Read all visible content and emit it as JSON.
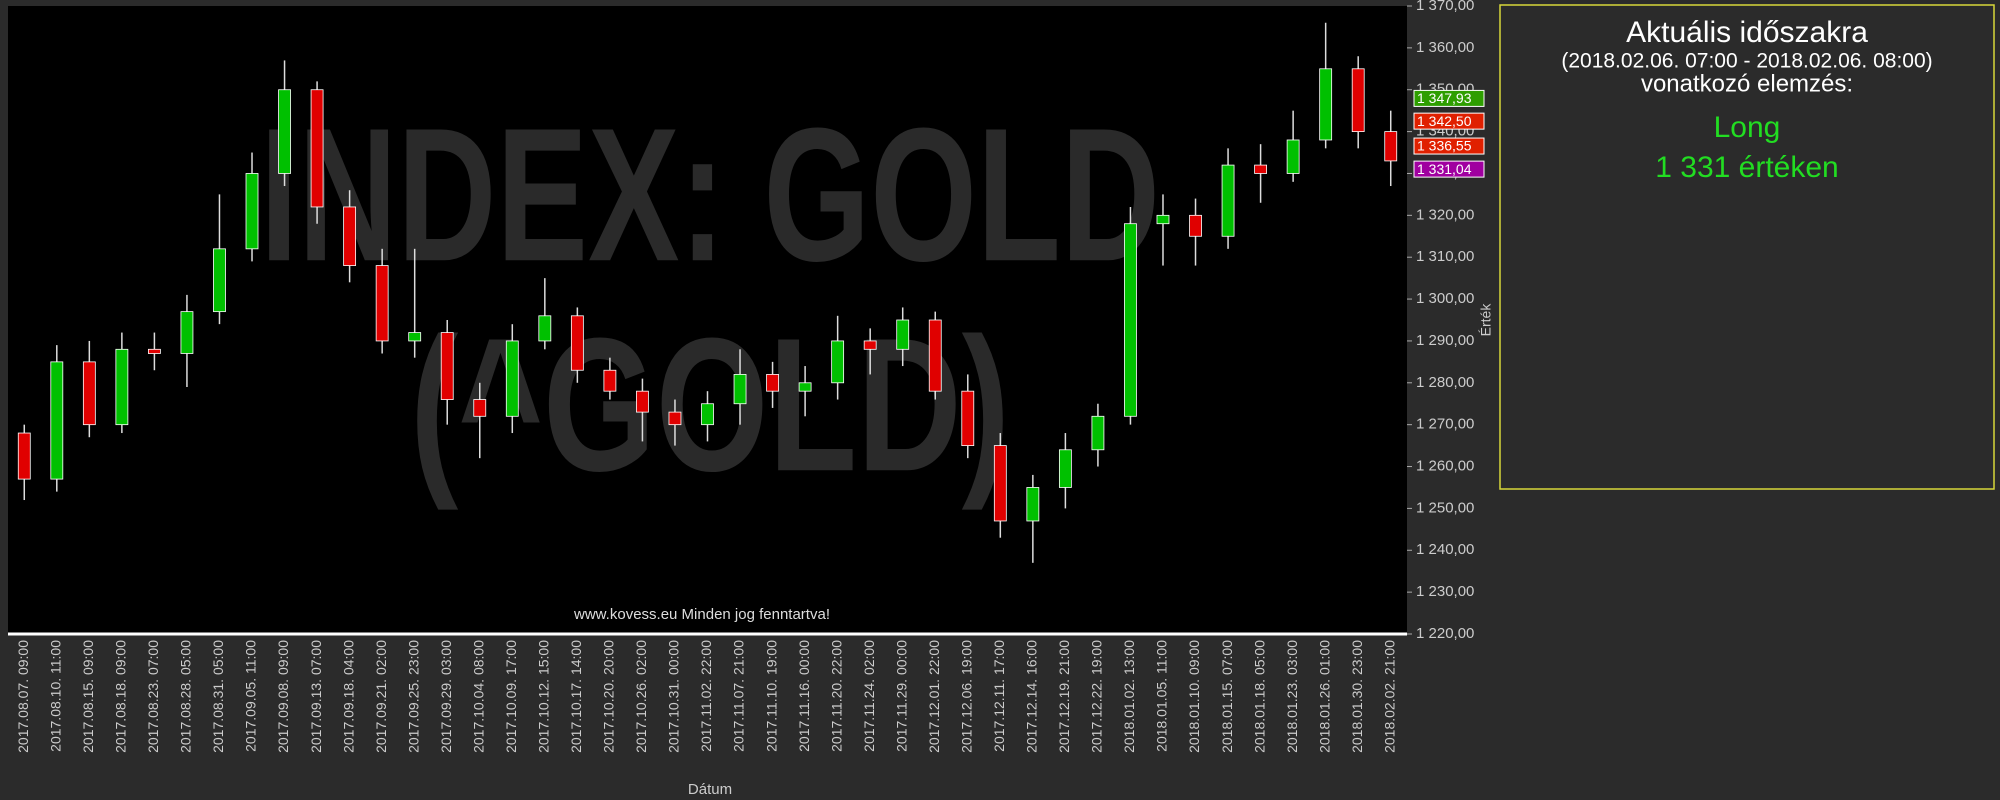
{
  "chart_data": {
    "type": "candlestick",
    "watermark": [
      "INDEX: GOLD",
      "(^GOLD)"
    ],
    "footer": "www.kovess.eu Minden jog fenntartva!",
    "y_label": "Érték",
    "x_label": "Dátum",
    "up_color": "#00c000",
    "down_color": "#e00000",
    "categories": [
      "2017.08.07. 09:00",
      "2017.08.10. 11:00",
      "2017.08.15. 09:00",
      "2017.08.18. 09:00",
      "2017.08.23. 07:00",
      "2017.08.28. 05:00",
      "2017.08.31. 05:00",
      "2017.09.05. 11:00",
      "2017.09.08. 09:00",
      "2017.09.13. 07:00",
      "2017.09.18. 04:00",
      "2017.09.21. 02:00",
      "2017.09.25. 23:00",
      "2017.09.29. 03:00",
      "2017.10.04. 08:00",
      "2017.10.09. 17:00",
      "2017.10.12. 15:00",
      "2017.10.17. 14:00",
      "2017.10.20. 20:00",
      "2017.10.26. 02:00",
      "2017.10.31. 00:00",
      "2017.11.02. 22:00",
      "2017.11.07. 21:00",
      "2017.11.10. 19:00",
      "2017.11.16. 00:00",
      "2017.11.20. 22:00",
      "2017.11.24. 02:00",
      "2017.11.29. 00:00",
      "2017.12.01. 22:00",
      "2017.12.06. 19:00",
      "2017.12.11. 17:00",
      "2017.12.14. 16:00",
      "2017.12.19. 21:00",
      "2017.12.22. 19:00",
      "2018.01.02. 13:00",
      "2018.01.05. 11:00",
      "2018.01.10. 09:00",
      "2018.01.15. 07:00",
      "2018.01.18. 05:00",
      "2018.01.23. 03:00",
      "2018.01.26. 01:00",
      "2018.01.30. 23:00",
      "2018.02.02. 21:00"
    ],
    "open": [
      1268,
      1257,
      1285,
      1270,
      1288,
      1287,
      1297,
      1312,
      1330,
      1350,
      1322,
      1308,
      1290,
      1292,
      1276,
      1272,
      1290,
      1296,
      1283,
      1278,
      1273,
      1270,
      1275,
      1282,
      1278,
      1280,
      1290,
      1288,
      1295,
      1278,
      1265,
      1247,
      1255,
      1264,
      1272,
      1318,
      1320,
      1315,
      1332,
      1330,
      1338,
      1355,
      1340
    ],
    "high": [
      1270,
      1289,
      1290,
      1292,
      1292,
      1301,
      1325,
      1335,
      1357,
      1352,
      1326,
      1312,
      1312,
      1295,
      1280,
      1294,
      1305,
      1298,
      1286,
      1281,
      1276,
      1278,
      1288,
      1285,
      1284,
      1296,
      1293,
      1298,
      1297,
      1282,
      1268,
      1258,
      1268,
      1275,
      1322,
      1325,
      1324,
      1336,
      1337,
      1345,
      1366,
      1358,
      1345
    ],
    "low": [
      1252,
      1254,
      1267,
      1268,
      1283,
      1279,
      1294,
      1309,
      1327,
      1318,
      1304,
      1287,
      1286,
      1270,
      1262,
      1268,
      1288,
      1280,
      1276,
      1266,
      1265,
      1266,
      1270,
      1274,
      1272,
      1276,
      1282,
      1284,
      1276,
      1262,
      1243,
      1237,
      1250,
      1260,
      1270,
      1308,
      1308,
      1312,
      1323,
      1328,
      1336,
      1336,
      1327
    ],
    "close": [
      1257,
      1285,
      1270,
      1288,
      1287,
      1297,
      1312,
      1330,
      1350,
      1322,
      1308,
      1290,
      1292,
      1276,
      1272,
      1290,
      1296,
      1283,
      1278,
      1273,
      1270,
      1275,
      1282,
      1278,
      1280,
      1290,
      1288,
      1295,
      1278,
      1265,
      1247,
      1255,
      1264,
      1272,
      1318,
      1320,
      1315,
      1332,
      1330,
      1338,
      1355,
      1340,
      1333
    ],
    "ylim": [
      1220,
      1370
    ],
    "yticks": [
      {
        "value": 1220,
        "label": "1 220,00"
      },
      {
        "value": 1230,
        "label": "1 230,00"
      },
      {
        "value": 1240,
        "label": "1 240,00"
      },
      {
        "value": 1250,
        "label": "1 250,00"
      },
      {
        "value": 1260,
        "label": "1 260,00"
      },
      {
        "value": 1270,
        "label": "1 270,00"
      },
      {
        "value": 1280,
        "label": "1 280,00"
      },
      {
        "value": 1290,
        "label": "1 290,00"
      },
      {
        "value": 1300,
        "label": "1 300,00"
      },
      {
        "value": 1310,
        "label": "1 310,00"
      },
      {
        "value": 1320,
        "label": "1 320,00"
      },
      {
        "value": 1330,
        "label": "1 330,00"
      },
      {
        "value": 1340,
        "label": "1 340,00"
      },
      {
        "value": 1350,
        "label": "1 350,00"
      },
      {
        "value": 1360,
        "label": "1 360,00"
      },
      {
        "value": 1370,
        "label": "1 370,00"
      }
    ],
    "price_tags": [
      {
        "value": 1347.93,
        "label": "1 347,93",
        "color": "#2e9e00"
      },
      {
        "value": 1342.5,
        "label": "1 342,50",
        "color": "#e02000"
      },
      {
        "value": 1336.55,
        "label": "1 336,55",
        "color": "#e02000"
      },
      {
        "value": 1331.04,
        "label": "1 331,04",
        "color": "#a000a0"
      }
    ]
  },
  "panel": {
    "title": "Aktuális időszakra",
    "period": "(2018.02.06. 07:00 - 2018.02.06. 08:00)",
    "subtitle": "vonatkozó elemzés:",
    "signal": "Long",
    "level": "1 331  értéken"
  }
}
